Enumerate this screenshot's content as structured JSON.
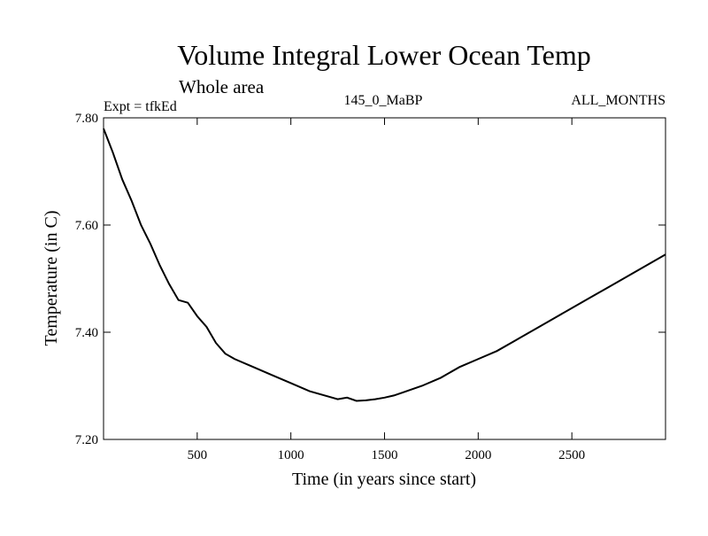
{
  "chart_data": {
    "type": "line",
    "title": "Volume Integral Lower Ocean Temp",
    "subtitle": "Whole area",
    "annotations": {
      "experiment": "Expt = tfkEd",
      "period": "145_0_MaBP",
      "months": "ALL_MONTHS"
    },
    "xlabel": "Time (in years since start)",
    "ylabel": "Temperature (in C)",
    "xlim": [
      0,
      3000
    ],
    "ylim": [
      7.2,
      7.8
    ],
    "xticks": [
      500,
      1000,
      1500,
      2000,
      2500
    ],
    "xtick_labels": [
      "500",
      "1000",
      "1500",
      "2000",
      "2500"
    ],
    "yticks": [
      7.2,
      7.4,
      7.6,
      7.8
    ],
    "ytick_labels": [
      "7.20",
      "7.40",
      "7.60",
      "7.80"
    ],
    "grid": false,
    "series": [
      {
        "color": "#000000",
        "x": [
          0,
          50,
          100,
          150,
          200,
          250,
          300,
          350,
          400,
          450,
          500,
          550,
          600,
          650,
          700,
          800,
          900,
          1000,
          1100,
          1200,
          1250,
          1300,
          1350,
          1400,
          1450,
          1500,
          1550,
          1600,
          1700,
          1800,
          1900,
          2000,
          2100,
          2200,
          2300,
          2400,
          2500,
          2600,
          2700,
          2800,
          2900,
          3000
        ],
        "y": [
          7.78,
          7.735,
          7.685,
          7.645,
          7.6,
          7.565,
          7.525,
          7.49,
          7.46,
          7.455,
          7.43,
          7.41,
          7.38,
          7.36,
          7.35,
          7.335,
          7.32,
          7.305,
          7.29,
          7.28,
          7.275,
          7.278,
          7.272,
          7.273,
          7.275,
          7.278,
          7.282,
          7.288,
          7.3,
          7.315,
          7.335,
          7.35,
          7.365,
          7.385,
          7.405,
          7.425,
          7.445,
          7.465,
          7.485,
          7.505,
          7.525,
          7.545
        ]
      }
    ]
  }
}
